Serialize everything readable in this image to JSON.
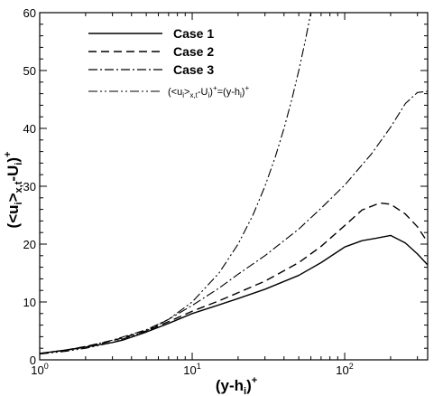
{
  "chart_data": {
    "type": "line",
    "xscale": "log",
    "xlim": [
      1,
      350
    ],
    "ylim": [
      0,
      60
    ],
    "x_ticks": [
      1,
      10,
      100
    ],
    "x_tick_labels": [
      {
        "base": "10",
        "exp": "0"
      },
      {
        "base": "10",
        "exp": "1"
      },
      {
        "base": "10",
        "exp": "2"
      }
    ],
    "y_ticks": [
      0,
      10,
      20,
      30,
      40,
      50,
      60
    ],
    "y_tick_labels": [
      "0",
      "10",
      "20",
      "30",
      "40",
      "50",
      "60"
    ],
    "xlabel": {
      "open": "(y-h",
      "sub": "i",
      "close": ")",
      "sup": "+"
    },
    "ylabel": {
      "p1": "(<u",
      "sub1": "i",
      "p2": ">",
      "sub2": "x,t",
      "p3": "-U",
      "sub3": "i",
      "p4": ")",
      "sup": "+"
    },
    "grid": false,
    "legend_position": "top-left",
    "series": [
      {
        "name": "Case 1",
        "style": "solid",
        "color": "#000000",
        "x": [
          1,
          1.5,
          2,
          3,
          3.5,
          5,
          7,
          10,
          15,
          20,
          30,
          50,
          70,
          100,
          130,
          160,
          200,
          250,
          300,
          350
        ],
        "y": [
          1.1,
          1.7,
          2.2,
          3.0,
          3.4,
          4.8,
          6.3,
          8.0,
          9.5,
          10.6,
          12.2,
          14.6,
          16.8,
          19.5,
          20.6,
          21.0,
          21.5,
          20.2,
          18.3,
          16.4
        ]
      },
      {
        "name": "Case 2",
        "style": "dashed",
        "color": "#000000",
        "x": [
          1,
          1.5,
          2,
          3,
          5,
          7,
          10,
          15,
          20,
          30,
          50,
          70,
          100,
          130,
          170,
          200,
          250,
          300,
          350
        ],
        "y": [
          1.1,
          1.7,
          2.3,
          3.3,
          5.0,
          6.6,
          8.4,
          10.2,
          11.6,
          13.6,
          16.8,
          19.6,
          23.2,
          25.9,
          27.1,
          26.9,
          25.2,
          23.0,
          20.3
        ]
      },
      {
        "name": "Case 3",
        "style": "dashdot",
        "color": "#000000",
        "x": [
          1,
          1.5,
          2,
          3,
          5,
          7,
          10,
          15,
          20,
          30,
          50,
          70,
          100,
          150,
          200,
          250,
          300,
          350
        ],
        "y": [
          1.1,
          1.7,
          2.3,
          3.4,
          5.2,
          7.0,
          9.4,
          12.4,
          14.8,
          18.0,
          22.6,
          26.2,
          30.2,
          35.6,
          40.2,
          44.3,
          46.2,
          46.4
        ]
      },
      {
        "name": "(<u_i>_x,t-U_i)+=(y-h_i)+",
        "label_parts": {
          "p1": "(<u",
          "sub1": "i",
          "p2": ">",
          "sub2": "x,t",
          "p3": "-U",
          "sub3": "i",
          "p4": ")",
          "sup1": "+",
          "p5": "=(y-h",
          "sub4": "i",
          "p6": ")",
          "sup2": "+"
        },
        "style": "dashdotdot",
        "color": "#000000",
        "x": [
          1,
          1.5,
          2,
          3,
          5,
          7,
          10,
          15,
          20,
          25,
          30,
          35,
          40,
          45,
          50,
          55,
          60
        ],
        "y": [
          1,
          1.5,
          2,
          3,
          5,
          7,
          10,
          15,
          20,
          25,
          30,
          35,
          40,
          45,
          50,
          55,
          60
        ]
      }
    ]
  }
}
